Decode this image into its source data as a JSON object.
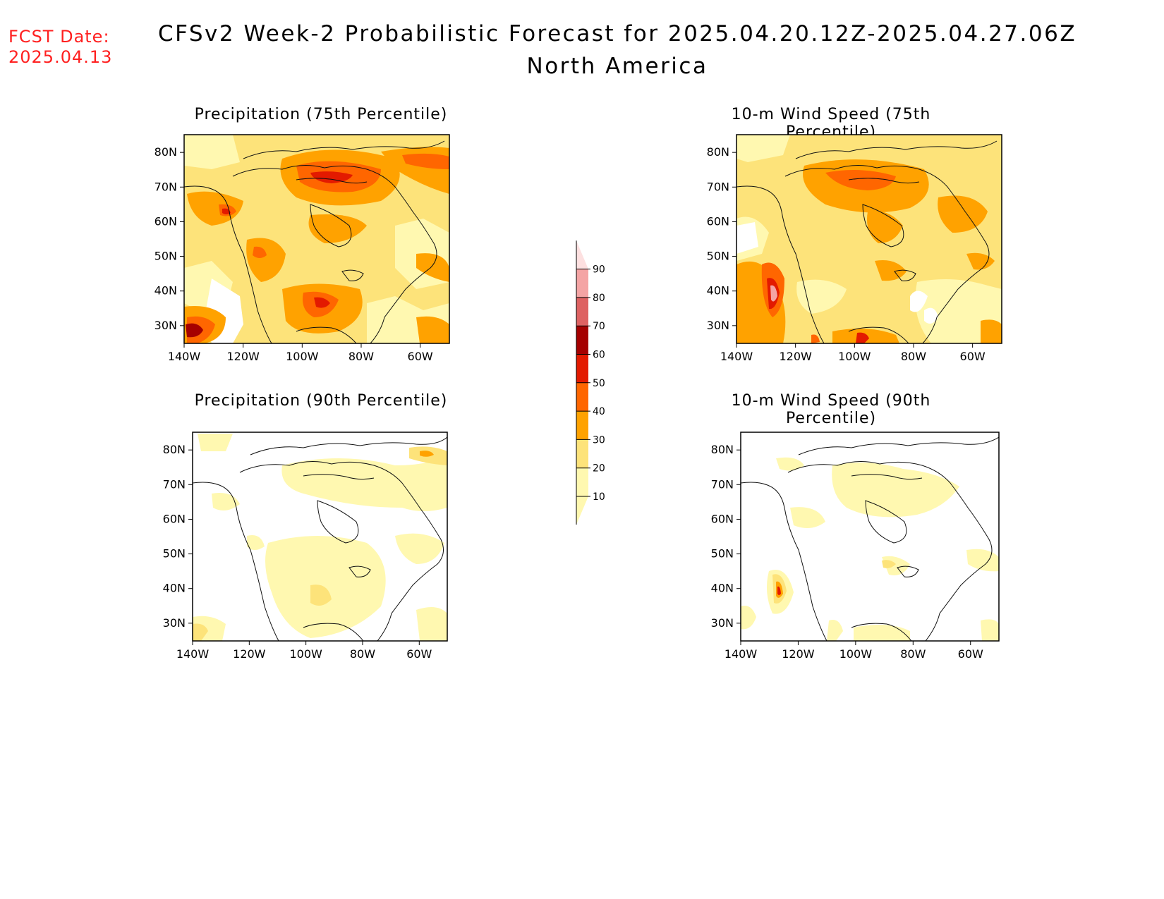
{
  "header": {
    "fcst_label": "FCST Date:",
    "fcst_date": "2025.04.13",
    "title_line1": "CFSv2 Week-2 Probabilistic Forecast for 2025.04.20.12Z-2025.04.27.06Z",
    "title_line2": "North America"
  },
  "panels": [
    {
      "id": "p75",
      "title": "Precipitation (75th Percentile)"
    },
    {
      "id": "w75",
      "title": "10-m Wind Speed (75th Percentile)"
    },
    {
      "id": "p90",
      "title": "Precipitation (90th Percentile)"
    },
    {
      "id": "w90",
      "title": "10-m Wind Speed (90th Percentile)"
    }
  ],
  "axes": {
    "lat_labels": [
      "30N",
      "40N",
      "50N",
      "60N",
      "70N",
      "80N"
    ],
    "lon_labels": [
      "140W",
      "120W",
      "100W",
      "80W",
      "60W"
    ]
  },
  "colorbar": {
    "levels": [
      "10",
      "20",
      "30",
      "40",
      "50",
      "60",
      "70",
      "80",
      "90"
    ],
    "colors": [
      "#fff8b0",
      "#fde37a",
      "#ffa200",
      "#ff6600",
      "#e31a00",
      "#a50000",
      "#de6262",
      "#f4a4a4",
      "#fde0e0"
    ]
  }
}
